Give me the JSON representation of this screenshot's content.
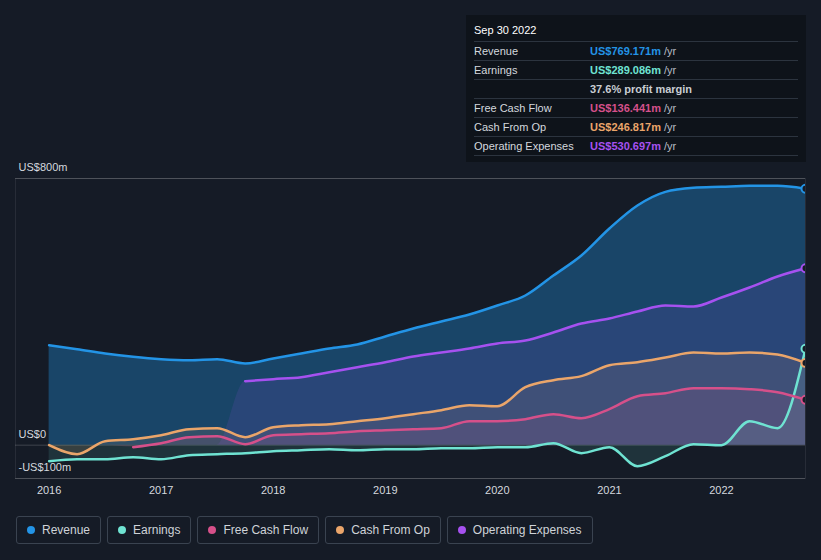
{
  "chart_data": {
    "type": "line",
    "x": [
      2016.0,
      2016.25,
      2016.5,
      2016.75,
      2017.0,
      2017.25,
      2017.5,
      2017.75,
      2018.0,
      2018.25,
      2018.5,
      2018.75,
      2019.0,
      2019.25,
      2019.5,
      2019.75,
      2020.0,
      2020.25,
      2020.5,
      2020.75,
      2021.0,
      2021.25,
      2021.5,
      2021.75,
      2022.0,
      2022.25,
      2022.5,
      2022.75
    ],
    "series": [
      {
        "name": "Revenue",
        "color": "#2394e6",
        "values": [
          300,
          288,
          275,
          265,
          258,
          255,
          258,
          245,
          260,
          275,
          290,
          302,
          326,
          350,
          371,
          392,
          419,
          449,
          509,
          569,
          650,
          719,
          760,
          772,
          775,
          778,
          778,
          769.171
        ]
      },
      {
        "name": "Earnings",
        "color": "#6fe3d2",
        "values": [
          -48,
          -42,
          -42,
          -36,
          -42,
          -30,
          -27,
          -24,
          -18,
          -15,
          -12,
          -15,
          -12,
          -12,
          -9,
          -9,
          -6,
          -6,
          6,
          -24,
          -6,
          -63,
          -33,
          3,
          0,
          72,
          51,
          289.086
        ]
      },
      {
        "name": "Free Cash Flow",
        "color": "#d6508a",
        "values": [
          null,
          null,
          null,
          -6,
          6,
          24,
          27,
          3,
          30,
          33,
          36,
          42,
          45,
          48,
          51,
          72,
          72,
          78,
          93,
          81,
          108,
          147,
          156,
          171,
          171,
          168,
          159,
          136.441
        ]
      },
      {
        "name": "Cash From Op",
        "color": "#eaa56a",
        "values": [
          0,
          -27,
          12,
          18,
          30,
          48,
          51,
          24,
          54,
          60,
          63,
          72,
          81,
          93,
          105,
          120,
          117,
          174,
          195,
          207,
          240,
          249,
          263,
          278,
          275,
          278,
          272,
          246.817
        ]
      },
      {
        "name": "Operating Expenses",
        "color": "#a651f0",
        "values": [
          null,
          null,
          null,
          null,
          null,
          null,
          null,
          192,
          198,
          204,
          219,
          234,
          249,
          266,
          278,
          290,
          305,
          314,
          338,
          365,
          380,
          401,
          419,
          416,
          443,
          473,
          506,
          530.697
        ]
      }
    ],
    "xlim": [
      2015.7,
      2022.75
    ],
    "xticks": [
      2016,
      2017,
      2018,
      2019,
      2020,
      2021,
      2022
    ],
    "ylim": [
      -100,
      800
    ],
    "yticks": [
      {
        "value": 800,
        "label": "US$800m"
      },
      {
        "value": 0,
        "label": "US$0"
      },
      {
        "value": -100,
        "label": "-US$100m"
      }
    ],
    "grid": true,
    "legend": "bottom",
    "annotation": {
      "title": "Sep 30 2022",
      "rows": [
        {
          "label": "Revenue",
          "value": "US$769.171m",
          "unit": "/yr",
          "color": "#2394e6"
        },
        {
          "label": "Earnings",
          "value": "US$289.086m",
          "unit": "/yr",
          "color": "#6fe3d2"
        },
        {
          "label": "",
          "value": "37.6% profit margin",
          "unit": null,
          "color": "#c9cdd3"
        },
        {
          "label": "Free Cash Flow",
          "value": "US$136.441m",
          "unit": "/yr",
          "color": "#d6508a"
        },
        {
          "label": "Cash From Op",
          "value": "US$246.817m",
          "unit": "/yr",
          "color": "#eaa56a"
        },
        {
          "label": "Operating Expenses",
          "value": "US$530.697m",
          "unit": "/yr",
          "color": "#a651f0"
        }
      ]
    }
  }
}
